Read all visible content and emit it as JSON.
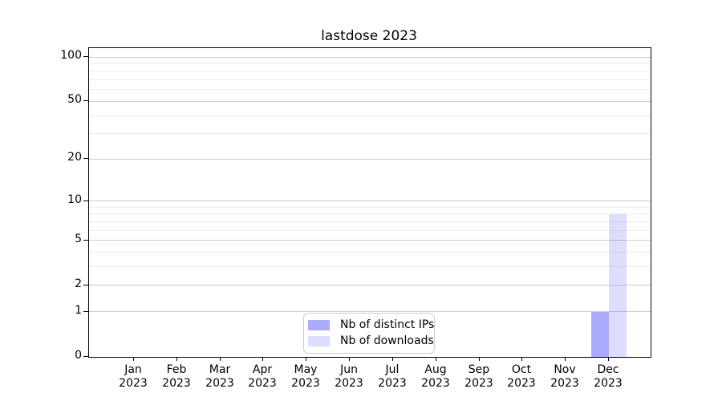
{
  "chart_data": {
    "type": "bar",
    "title": "lastdose 2023",
    "categories": [
      "Jan 2023",
      "Feb 2023",
      "Mar 2023",
      "Apr 2023",
      "May 2023",
      "Jun 2023",
      "Jul 2023",
      "Aug 2023",
      "Sep 2023",
      "Oct 2023",
      "Nov 2023",
      "Dec 2023"
    ],
    "series": [
      {
        "name": "Nb of distinct IPs",
        "color": "rgba(102,102,250,0.55)",
        "color_hex": "#aba9fc",
        "values": [
          0,
          0,
          0,
          0,
          0,
          0,
          0,
          0,
          0,
          0,
          0,
          1
        ]
      },
      {
        "name": "Nb of downloads",
        "color": "rgba(102,102,250,0.22)",
        "color_hex": "#dddcfa",
        "values": [
          0,
          0,
          0,
          0,
          0,
          0,
          0,
          0,
          0,
          0,
          0,
          8
        ]
      }
    ],
    "xlabel": "",
    "ylabel": "",
    "yscale": "log1p",
    "ylim": [
      0,
      112
    ],
    "yticks": [
      0,
      1,
      2,
      5,
      10,
      20,
      50,
      100
    ],
    "minor_yticks": [
      3,
      4,
      6,
      7,
      8,
      9,
      30,
      40,
      60,
      70,
      80,
      90
    ],
    "grid": true,
    "legend_position": "lower center",
    "axis_color": "#000000",
    "grid_major_color": "#cbcbcb",
    "grid_minor_color": "#ececec"
  }
}
